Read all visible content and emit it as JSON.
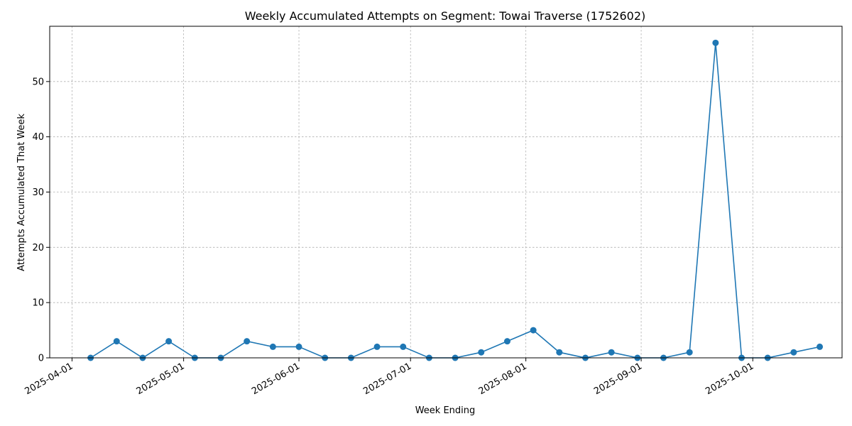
{
  "chart_data": {
    "type": "line",
    "title": "Weekly Accumulated Attempts on Segment: Towai Traverse (1752602)",
    "xlabel": "Week Ending",
    "ylabel": "Attempts Accumulated That Week",
    "x_tick_labels": [
      "2025-04-01",
      "2025-05-01",
      "2025-06-01",
      "2025-07-01",
      "2025-08-01",
      "2025-09-01",
      "2025-10-01"
    ],
    "y_tick_labels": [
      "0",
      "10",
      "20",
      "30",
      "40",
      "50"
    ],
    "xlim": [
      "2025-03-26",
      "2025-10-25"
    ],
    "ylim": [
      0,
      60
    ],
    "grid": true,
    "series": [
      {
        "color": "#1f77b4",
        "marker": "circle",
        "x": [
          "2025-04-06",
          "2025-04-13",
          "2025-04-20",
          "2025-04-27",
          "2025-05-04",
          "2025-05-11",
          "2025-05-18",
          "2025-05-25",
          "2025-06-01",
          "2025-06-08",
          "2025-06-15",
          "2025-06-22",
          "2025-06-29",
          "2025-07-06",
          "2025-07-13",
          "2025-07-20",
          "2025-07-27",
          "2025-08-03",
          "2025-08-10",
          "2025-08-17",
          "2025-08-24",
          "2025-08-31",
          "2025-09-07",
          "2025-09-14",
          "2025-09-21",
          "2025-09-28",
          "2025-10-05",
          "2025-10-12",
          "2025-10-19"
        ],
        "y": [
          0,
          3,
          0,
          3,
          0,
          0,
          3,
          2,
          2,
          0,
          0,
          2,
          2,
          0,
          0,
          1,
          3,
          5,
          1,
          0,
          1,
          0,
          0,
          1,
          57,
          0,
          0,
          1,
          2
        ]
      }
    ]
  }
}
